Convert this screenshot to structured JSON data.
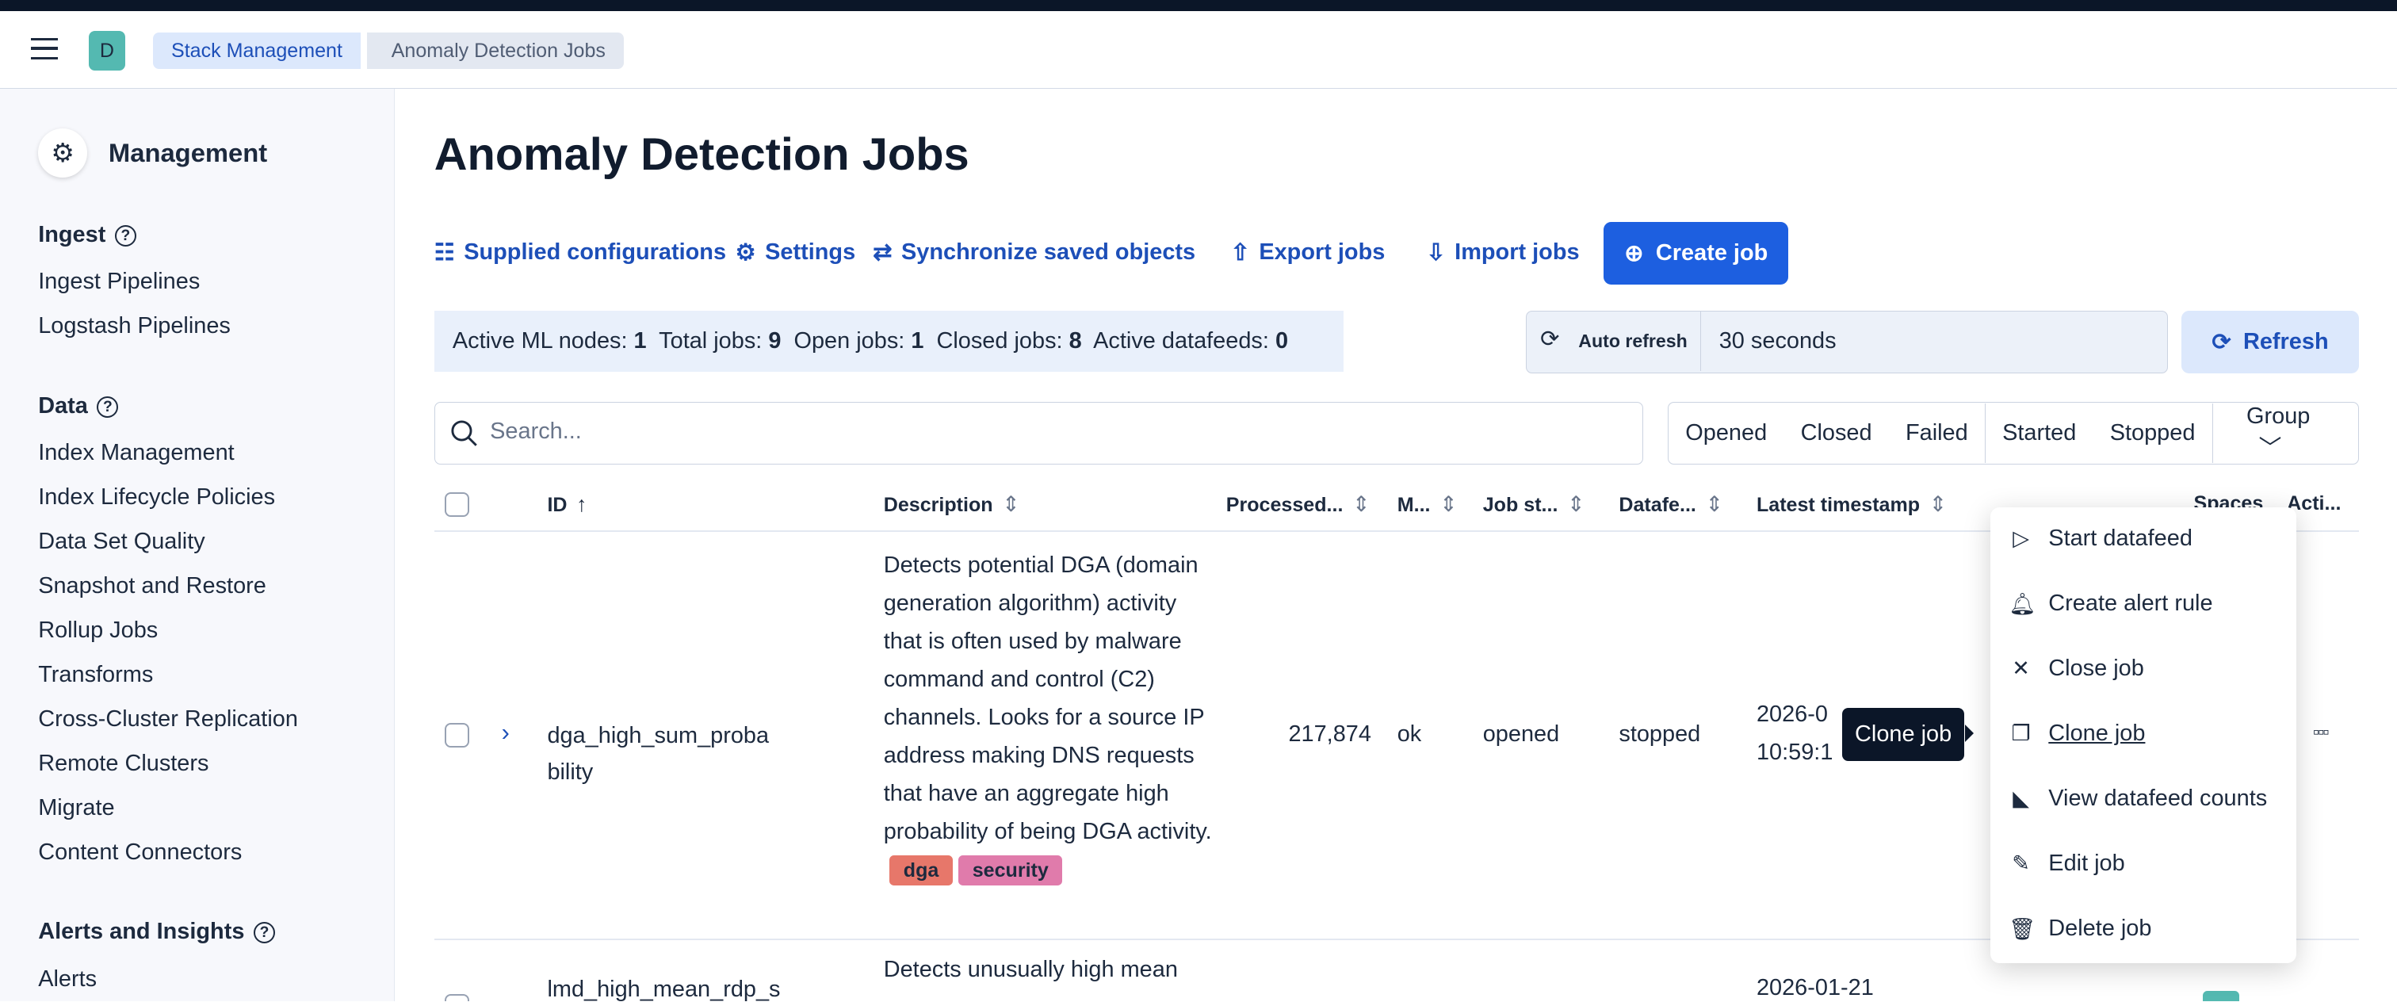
{
  "header": {
    "avatar": "D",
    "breadcrumbs": [
      "Stack Management",
      "Anomaly Detection Jobs"
    ]
  },
  "sidebar": {
    "title": "Management",
    "sections": [
      {
        "label": "Ingest",
        "items": [
          "Ingest Pipelines",
          "Logstash Pipelines"
        ]
      },
      {
        "label": "Data",
        "items": [
          "Index Management",
          "Index Lifecycle Policies",
          "Data Set Quality",
          "Snapshot and Restore",
          "Rollup Jobs",
          "Transforms",
          "Cross-Cluster Replication",
          "Remote Clusters",
          "Migrate",
          "Content Connectors"
        ]
      },
      {
        "label": "Alerts and Insights",
        "items": [
          "Alerts"
        ]
      }
    ]
  },
  "page": {
    "title": "Anomaly Detection Jobs"
  },
  "toolbar": {
    "supplied": "Supplied configurations",
    "settings": "Settings",
    "sync": "Synchronize saved objects",
    "export": "Export jobs",
    "import": "Import jobs",
    "create": "Create job"
  },
  "stats": {
    "l1": "Active ML nodes:",
    "v1": "1",
    "l2": "Total jobs:",
    "v2": "9",
    "l3": "Open jobs:",
    "v3": "1",
    "l4": "Closed jobs:",
    "v4": "8",
    "l5": "Active datafeeds:",
    "v5": "0"
  },
  "refresh": {
    "auto_label": "Auto refresh",
    "interval": "30 seconds",
    "button": "Refresh"
  },
  "search": {
    "placeholder": "Search...",
    "value": ""
  },
  "filters": [
    "Opened",
    "Closed",
    "Failed",
    "Started",
    "Stopped",
    "Group"
  ],
  "table": {
    "columns": [
      "ID",
      "Description",
      "Processed...",
      "M...",
      "Job st...",
      "Datafe...",
      "Latest timestamp",
      "Spaces",
      "Acti..."
    ],
    "rows": [
      {
        "id": "dga_high_sum_proba bility",
        "description": "Detects potential DGA (domain generation algorithm) activity that is often used by malware command and control (C2) channels. Looks for a source IP address making DNS requests that have an aggregate high probability of being DGA activity.",
        "tags": [
          {
            "label": "dga",
            "color": "#e7776a"
          },
          {
            "label": "security",
            "color": "#e07bab"
          }
        ],
        "processed": "217,874",
        "memory": "ok",
        "job_state": "opened",
        "datafeed": "stopped",
        "latest": "2026-0",
        "latest2": "10:59:1"
      },
      {
        "id": "lmd_high_mean_rdp_s",
        "description": "Detects unusually high mean",
        "latest": "2026-01-21"
      }
    ]
  },
  "actions_menu": {
    "items": [
      {
        "label": "Start datafeed",
        "icon": "play-icon"
      },
      {
        "label": "Create alert rule",
        "icon": "bell-icon"
      },
      {
        "label": "Close job",
        "icon": "cross-icon"
      },
      {
        "label": "Clone job",
        "icon": "copy-icon"
      },
      {
        "label": "View datafeed counts",
        "icon": "chart-icon"
      },
      {
        "label": "Edit job",
        "icon": "pencil-icon"
      },
      {
        "label": "Delete job",
        "icon": "trash-icon"
      }
    ],
    "tooltip": "Clone job"
  },
  "colors": {
    "accent": "#1d5fe0",
    "link": "#1d4fb8",
    "topbar": "#0b1628",
    "avatar": "#54b9b1"
  }
}
